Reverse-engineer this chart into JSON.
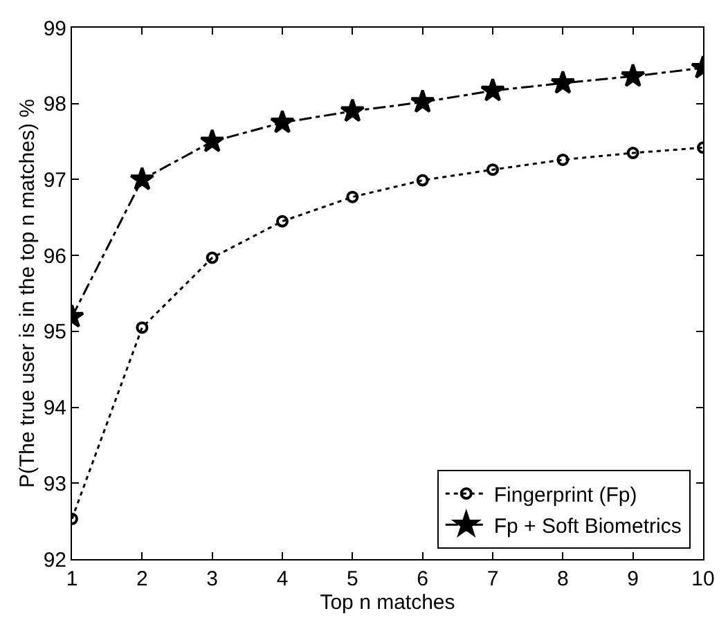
{
  "chart_data": {
    "type": "line",
    "xlabel": "Top n matches",
    "ylabel": "P(The true user is in the top n matches) %",
    "x": [
      1,
      2,
      3,
      4,
      5,
      6,
      7,
      8,
      9,
      10
    ],
    "series": [
      {
        "name": "Fingerprint (Fp)",
        "color": "#000000",
        "marker": "circle",
        "line_style": "dotted",
        "values": [
          92.53,
          95.05,
          95.97,
          96.45,
          96.77,
          96.99,
          97.13,
          97.26,
          97.35,
          97.42
        ]
      },
      {
        "name": "Fp + Soft Biometrics",
        "color": "#000000",
        "marker": "star",
        "line_style": "dashed",
        "values": [
          95.19,
          97.0,
          97.5,
          97.75,
          97.9,
          98.02,
          98.17,
          98.27,
          98.36,
          98.47
        ]
      }
    ],
    "xlim": [
      1,
      10
    ],
    "xticks": [
      1,
      2,
      3,
      4,
      5,
      6,
      7,
      8,
      9,
      10
    ],
    "ylim": [
      92,
      99
    ],
    "yticks": [
      92,
      93,
      94,
      95,
      96,
      97,
      98,
      99
    ],
    "grid": false,
    "legend": "bottom right"
  }
}
